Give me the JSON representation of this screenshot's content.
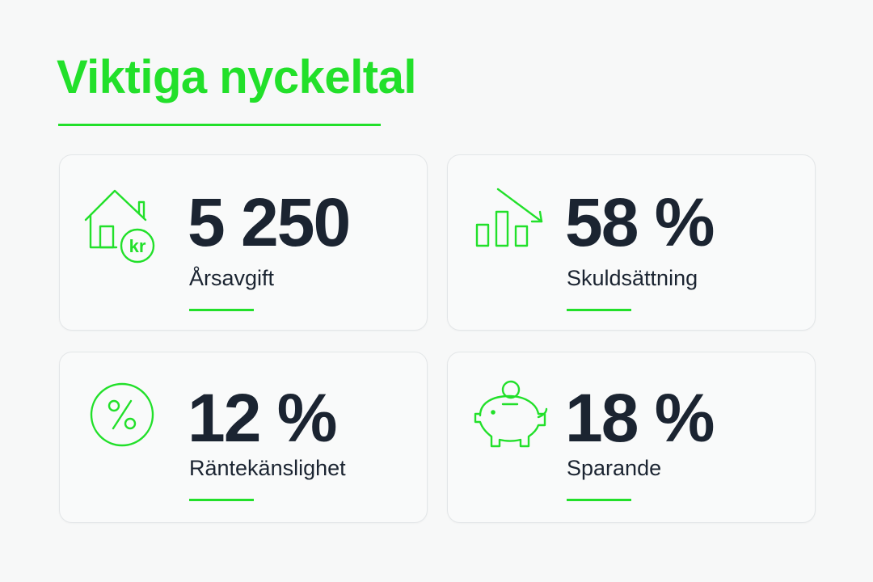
{
  "page": {
    "title": "Viktiga nyckeltal",
    "accent_color": "#22e02a",
    "text_color": "#1b2431"
  },
  "metrics": [
    {
      "value": "5 250",
      "label": "Årsavgift",
      "icon": "house-kr-icon"
    },
    {
      "value": "58 %",
      "label": "Skuldsättning",
      "icon": "bar-chart-down-icon"
    },
    {
      "value": "12 %",
      "label": "Räntekänslighet",
      "icon": "percent-circle-icon"
    },
    {
      "value": "18 %",
      "label": "Sparande",
      "icon": "piggy-bank-icon"
    }
  ]
}
